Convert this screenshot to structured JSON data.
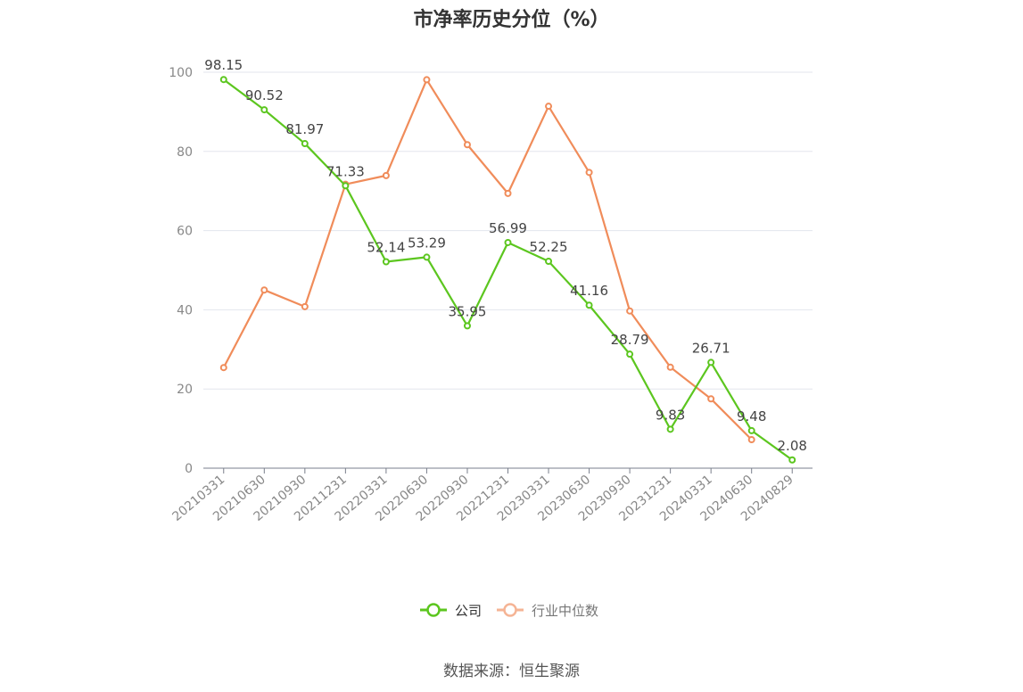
{
  "source": "数据来源：恒生聚源",
  "chart_data": {
    "type": "line",
    "title": "市净率历史分位（%）",
    "xlabel": "",
    "ylabel": "",
    "ylim": [
      0,
      100
    ],
    "yticks": [
      0,
      20,
      40,
      60,
      80,
      100
    ],
    "grid": true,
    "legend_position": "bottom-center",
    "categories": [
      "20210331",
      "20210630",
      "20210930",
      "20211231",
      "20220331",
      "20220630",
      "20220930",
      "20221231",
      "20230331",
      "20230630",
      "20230930",
      "20231231",
      "20240331",
      "20240630",
      "20240829"
    ],
    "series": [
      {
        "name": "公司",
        "color": "#5cc61f",
        "show_labels": true,
        "values": [
          98.15,
          90.52,
          81.97,
          71.33,
          52.14,
          53.29,
          35.95,
          56.99,
          52.25,
          41.16,
          28.79,
          9.83,
          26.71,
          9.48,
          2.08
        ],
        "labels": [
          "98.15",
          "90.52",
          "81.97",
          "71.33",
          "52.14",
          "53.29",
          "35.95",
          "56.99",
          "52.25",
          "41.16",
          "28.79",
          "9.83",
          "26.71",
          "9.48",
          "2.08"
        ]
      },
      {
        "name": "行业中位数",
        "color": "#f08c5a",
        "show_labels": false,
        "values": [
          25.4,
          45.0,
          40.8,
          71.7,
          73.9,
          98.1,
          81.7,
          69.4,
          91.4,
          74.7,
          39.7,
          25.5,
          17.5,
          7.2,
          null
        ]
      }
    ]
  }
}
